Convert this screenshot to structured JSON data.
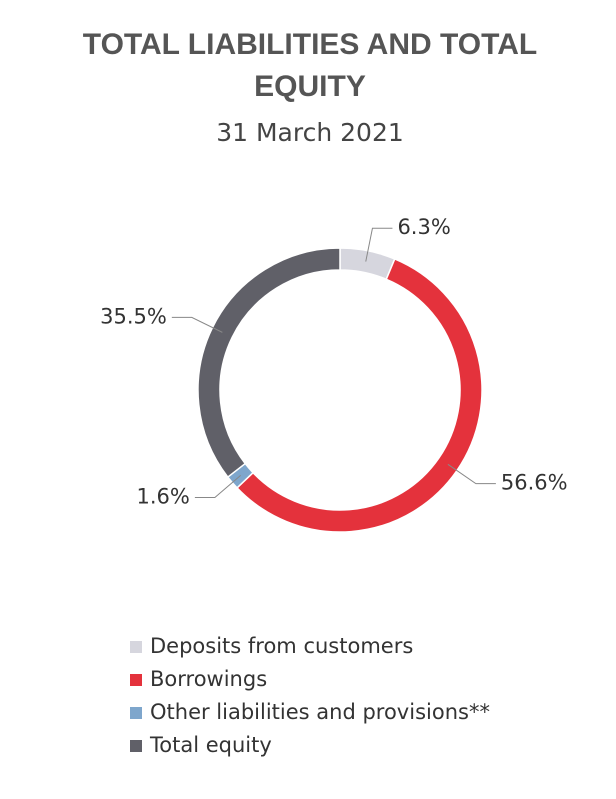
{
  "chart_data": {
    "type": "donut",
    "title": "TOTAL LIABILITIES AND TOTAL EQUITY",
    "subtitle": "31 March 2021",
    "categories": [
      "Deposits from customers",
      "Borrowings",
      "Other liabilities and provisions**",
      "Total equity"
    ],
    "values": [
      6.3,
      56.6,
      1.6,
      35.5
    ],
    "value_labels": [
      "6.3%",
      "56.6%",
      "1.6%",
      "35.5%"
    ],
    "colors": [
      "#d6d6de",
      "#e4323c",
      "#7ea6cc",
      "#606068"
    ]
  }
}
